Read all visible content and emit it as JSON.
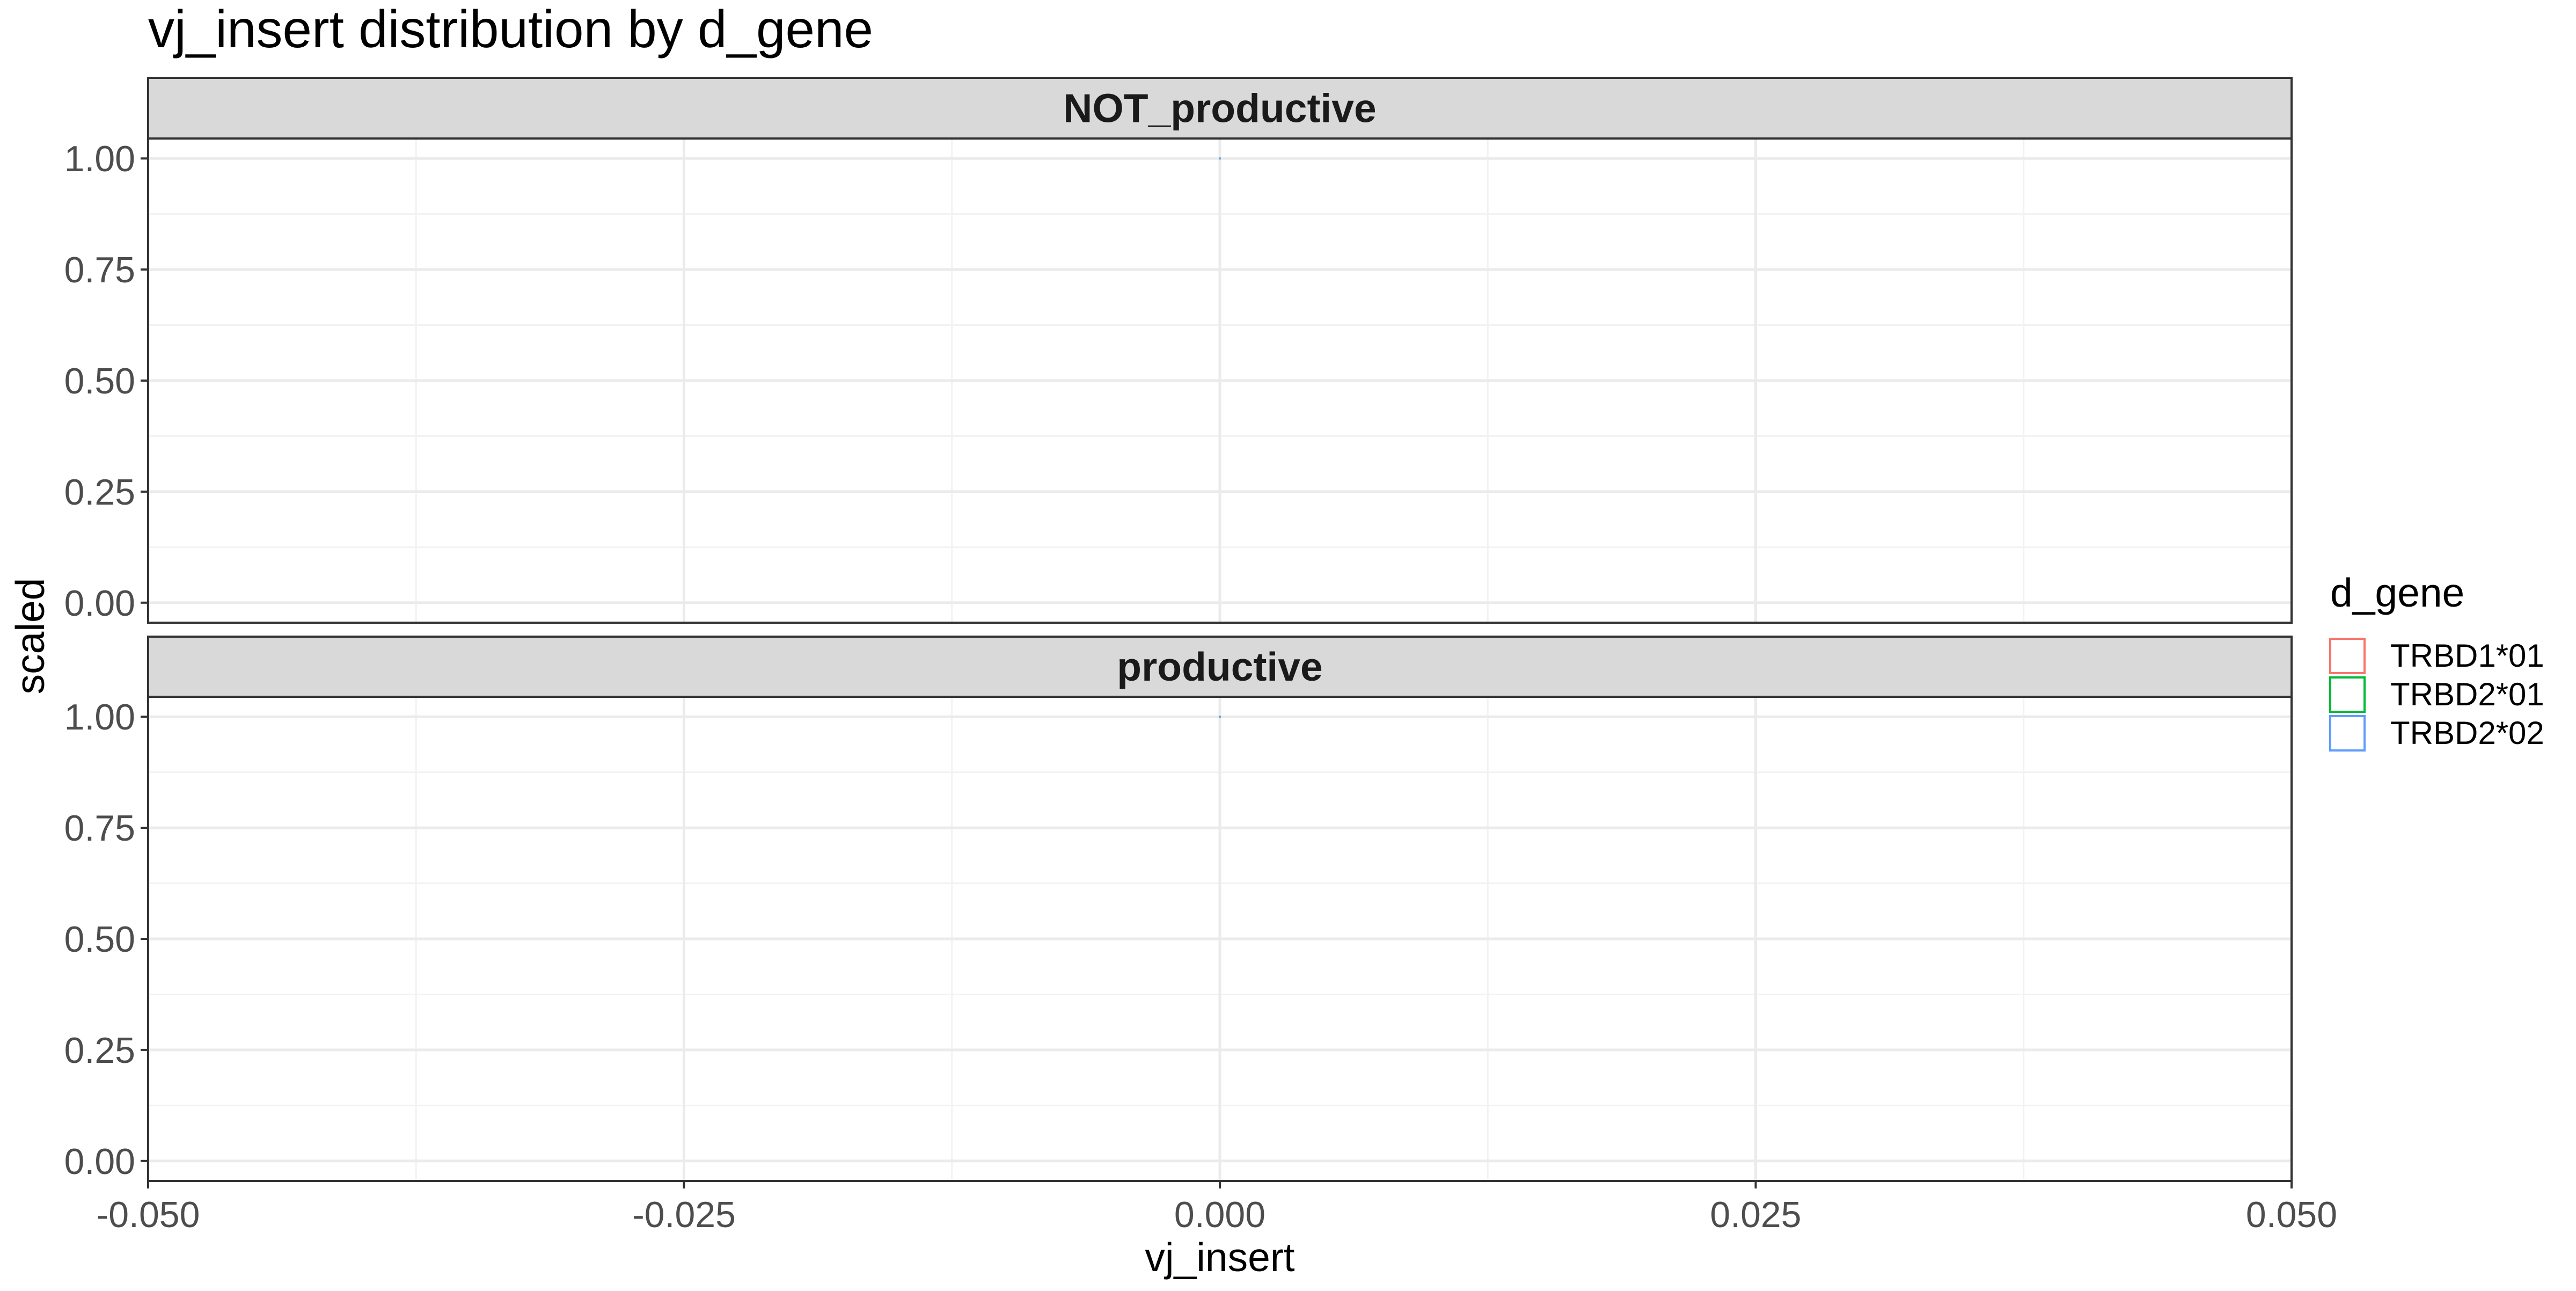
{
  "chart_data": {
    "type": "line",
    "title": "vj_insert distribution by d_gene",
    "xlabel": "vj_insert",
    "ylabel": "scaled",
    "xlim": [
      -0.05,
      0.05
    ],
    "ylim": [
      0,
      1
    ],
    "x_ticks": [
      -0.05,
      -0.025,
      0.0,
      0.025,
      0.05
    ],
    "x_tick_labels": [
      "-0.050",
      "-0.025",
      "0.000",
      "0.025",
      "0.050"
    ],
    "y_ticks": [
      0,
      0.25,
      0.5,
      0.75,
      1
    ],
    "y_tick_labels": [
      "0.00",
      "0.25",
      "0.50",
      "0.75",
      "1.00"
    ],
    "grid": true,
    "facets": [
      "NOT_productive",
      "productive"
    ],
    "legend": {
      "title": "d_gene",
      "placement": "right",
      "entries": [
        {
          "label": "TRBD1*01",
          "color": "#F8766D"
        },
        {
          "label": "TRBD2*01",
          "color": "#00BA38"
        },
        {
          "label": "TRBD2*02",
          "color": "#619CFF"
        }
      ]
    },
    "series": [
      {
        "facet": "NOT_productive",
        "name": "TRBD1*01",
        "points": [
          {
            "x": 0.0,
            "y": 1.0
          }
        ]
      },
      {
        "facet": "NOT_productive",
        "name": "TRBD2*01",
        "points": [
          {
            "x": 0.0,
            "y": 1.0
          }
        ]
      },
      {
        "facet": "NOT_productive",
        "name": "TRBD2*02",
        "points": [
          {
            "x": 0.0,
            "y": 1.0
          }
        ]
      },
      {
        "facet": "productive",
        "name": "TRBD1*01",
        "points": [
          {
            "x": 0.0,
            "y": 1.0
          }
        ]
      },
      {
        "facet": "productive",
        "name": "TRBD2*01",
        "points": [
          {
            "x": 0.0,
            "y": 1.0
          }
        ]
      },
      {
        "facet": "productive",
        "name": "TRBD2*02",
        "points": [
          {
            "x": 0.0,
            "y": 1.0
          }
        ]
      }
    ]
  }
}
